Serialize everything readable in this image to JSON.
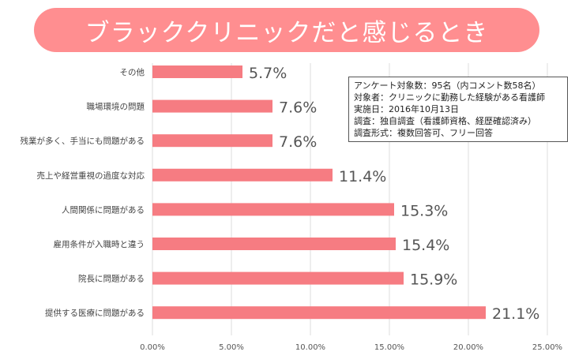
{
  "page": {
    "title": "ブラッククリニックだと感じるとき",
    "accent_color": "#ff8e90",
    "bar_color": "#f67c82"
  },
  "note": {
    "lines": [
      "アンケート対象数：95名（内コメント数58名）",
      "対象者：クリニックに勤務した経験がある看護師",
      "実施日：2016年10月13日",
      "調査：独自調査（看護師資格、経歴確認済み）",
      "調査形式：複数回答可、フリー回答"
    ]
  },
  "chart_data": {
    "type": "bar",
    "orientation": "horizontal",
    "title": "ブラッククリニックだと感じるとき",
    "categories": [
      "その他",
      "職場環境の問題",
      "残業が多く、手当にも問題がある",
      "売上や経営重視の過度な対応",
      "人間関係に問題がある",
      "雇用条件が入職時と違う",
      "院長に問題がある",
      "提供する医療に問題がある"
    ],
    "values": [
      5.7,
      7.6,
      7.6,
      11.4,
      15.3,
      15.4,
      15.9,
      21.1
    ],
    "value_labels": [
      "5.7%",
      "7.6%",
      "7.6%",
      "11.4%",
      "15.3%",
      "15.4%",
      "15.9%",
      "21.1%"
    ],
    "xlim": [
      0,
      25
    ],
    "x_ticks": [
      0,
      5,
      10,
      15,
      20,
      25
    ],
    "x_tick_labels": [
      "0.00%",
      "5.00%",
      "10.00%",
      "15.00%",
      "20.00%",
      "25.00%"
    ],
    "grid": "vertical",
    "legend": "none"
  }
}
